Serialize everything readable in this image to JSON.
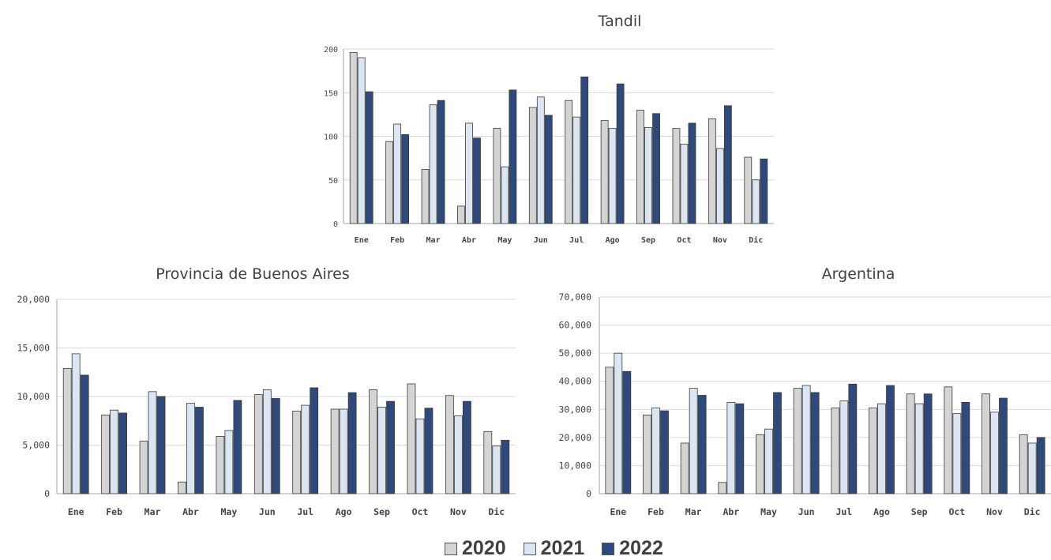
{
  "colors": {
    "s2020": "#d4d4d4",
    "s2021": "#dce6f2",
    "s2022": "#2f4a7a",
    "bar_stroke": "#3a3a3a",
    "grid": "#d9d9d9"
  },
  "legend": [
    "2020",
    "2021",
    "2022"
  ],
  "chart_data": [
    {
      "type": "bar",
      "title": "Tandil",
      "categories": [
        "Ene",
        "Feb",
        "Mar",
        "Abr",
        "May",
        "Jun",
        "Jul",
        "Ago",
        "Sep",
        "Oct",
        "Nov",
        "Dic"
      ],
      "series": [
        {
          "name": "2020",
          "values": [
            196,
            94,
            62,
            20,
            109,
            133,
            141,
            118,
            130,
            109,
            120,
            76
          ]
        },
        {
          "name": "2021",
          "values": [
            190,
            114,
            136,
            115,
            65,
            145,
            122,
            109,
            110,
            91,
            86,
            50
          ]
        },
        {
          "name": "2022",
          "values": [
            151,
            102,
            141,
            98,
            153,
            124,
            168,
            160,
            126,
            115,
            135,
            74
          ]
        }
      ],
      "ylim": [
        0,
        200
      ],
      "yticks": [
        "0",
        "50",
        "100",
        "150",
        "200"
      ],
      "ytick_values": [
        0,
        50,
        100,
        150,
        200
      ],
      "grid": true
    },
    {
      "type": "bar",
      "title": "Provincia de Buenos Aires",
      "categories": [
        "Ene",
        "Feb",
        "Mar",
        "Abr",
        "May",
        "Jun",
        "Jul",
        "Ago",
        "Sep",
        "Oct",
        "Nov",
        "Dic"
      ],
      "series": [
        {
          "name": "2020",
          "values": [
            12900,
            8100,
            5400,
            1200,
            5900,
            10200,
            8500,
            8700,
            10700,
            11300,
            10100,
            6400
          ]
        },
        {
          "name": "2021",
          "values": [
            14400,
            8600,
            10500,
            9300,
            6500,
            10700,
            9100,
            8700,
            8900,
            7700,
            8000,
            4900
          ]
        },
        {
          "name": "2022",
          "values": [
            12200,
            8300,
            10000,
            8900,
            9600,
            9800,
            10900,
            10400,
            9500,
            8800,
            9500,
            5500
          ]
        }
      ],
      "ylim": [
        0,
        20000
      ],
      "yticks": [
        "0",
        "5,000",
        "10,000",
        "15,000",
        "20,000"
      ],
      "ytick_values": [
        0,
        5000,
        10000,
        15000,
        20000
      ],
      "grid": true
    },
    {
      "type": "bar",
      "title": "Argentina",
      "categories": [
        "Ene",
        "Feb",
        "Mar",
        "Abr",
        "May",
        "Jun",
        "Jul",
        "Ago",
        "Sep",
        "Oct",
        "Nov",
        "Dic"
      ],
      "series": [
        {
          "name": "2020",
          "values": [
            45000,
            28000,
            18000,
            4000,
            21000,
            37500,
            30500,
            30500,
            35500,
            38000,
            35500,
            21000
          ]
        },
        {
          "name": "2021",
          "values": [
            50000,
            30500,
            37500,
            32500,
            23000,
            38500,
            33000,
            32000,
            32000,
            28500,
            29000,
            18000
          ]
        },
        {
          "name": "2022",
          "values": [
            43500,
            29500,
            35000,
            32000,
            36000,
            36000,
            39000,
            38500,
            35500,
            32500,
            34000,
            20000
          ]
        }
      ],
      "ylim": [
        0,
        70000
      ],
      "yticks": [
        "0",
        "10,000",
        "20,000",
        "30,000",
        "40,000",
        "50,000",
        "60,000",
        "70,000"
      ],
      "ytick_values": [
        0,
        10000,
        20000,
        30000,
        40000,
        50000,
        60000,
        70000
      ],
      "grid": true
    }
  ]
}
